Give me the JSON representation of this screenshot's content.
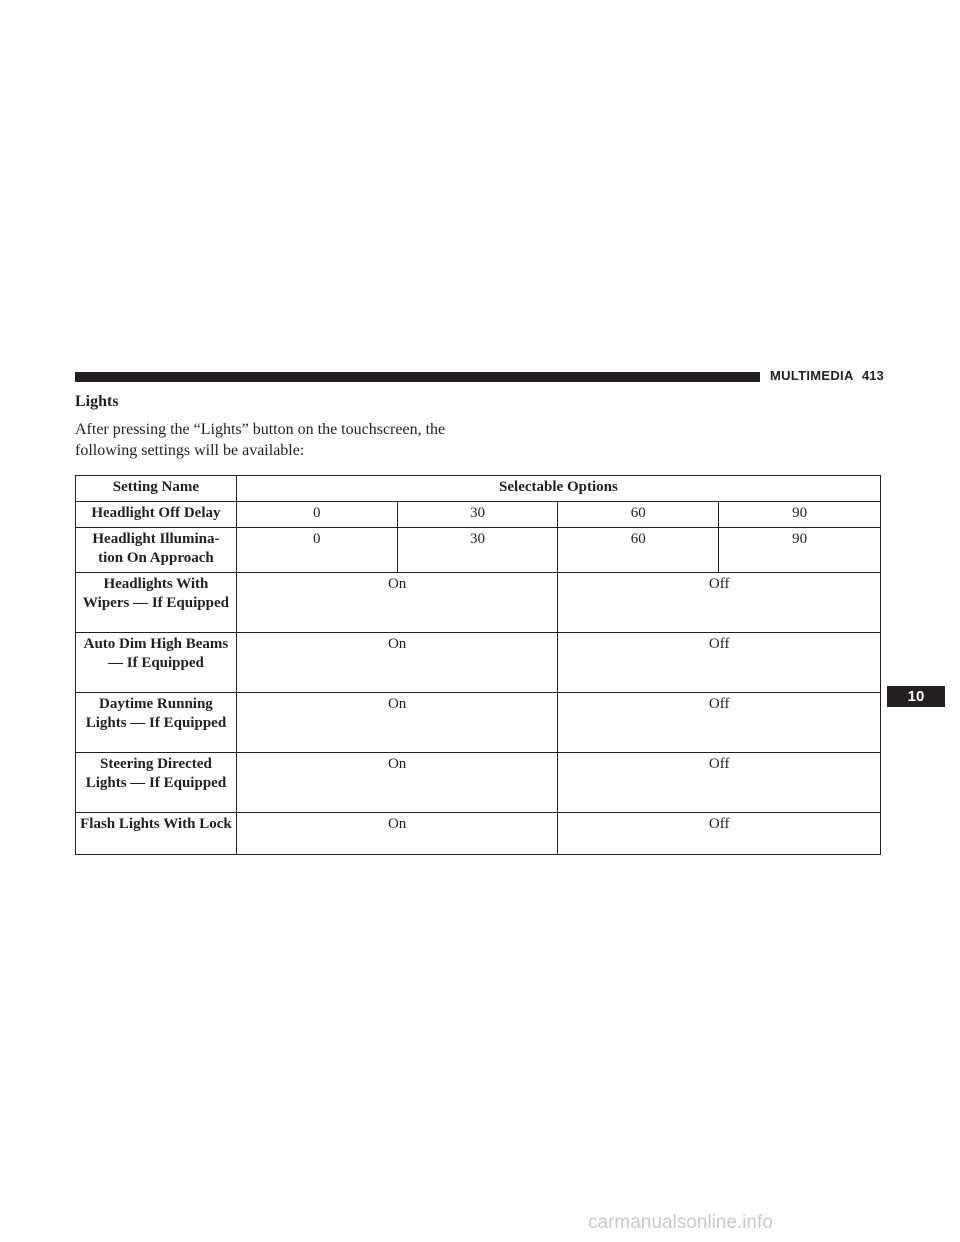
{
  "header": {
    "section": "MULTIMEDIA",
    "page_number": "413"
  },
  "section": {
    "title": "Lights",
    "intro": "After pressing the “Lights” button on the touchscreen, the following settings will be available:"
  },
  "table": {
    "headers": {
      "name": "Setting Name",
      "options": "Selectable Options"
    },
    "four_option_rows": [
      {
        "name": "Headlight Off Delay",
        "options": [
          "0",
          "30",
          "60",
          "90"
        ]
      },
      {
        "name": "Headlight Illumina- tion On Approach",
        "options": [
          "0",
          "30",
          "60",
          "90"
        ]
      }
    ],
    "two_option_rows": [
      {
        "name": "Headlights With Wipers — If Equipped",
        "options": [
          "On",
          "Off"
        ]
      },
      {
        "name": "Auto Dim High Beams — If Equipped",
        "options": [
          "On",
          "Off"
        ]
      },
      {
        "name": "Daytime Running Lights — If Equipped",
        "options": [
          "On",
          "Off"
        ]
      },
      {
        "name": "Steering Directed Lights — If Equipped",
        "options": [
          "On",
          "Off"
        ]
      },
      {
        "name": "Flash Lights With Lock",
        "options": [
          "On",
          "Off"
        ]
      }
    ]
  },
  "chapter_tab": "10",
  "watermark": "carmanualsonline.info"
}
